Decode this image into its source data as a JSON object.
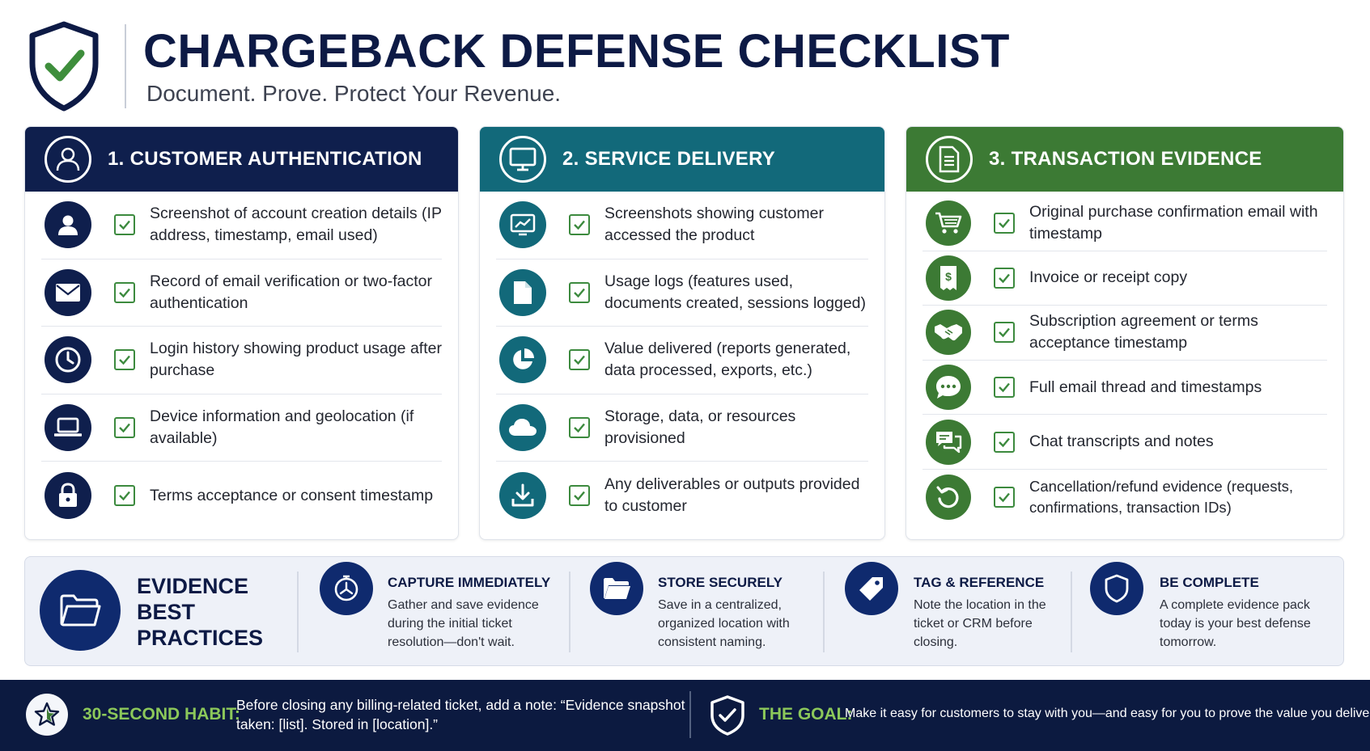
{
  "header": {
    "title": "CHARGEBACK DEFENSE CHECKLIST",
    "subtitle": "Document. Prove. Protect Your Revenue."
  },
  "colors": {
    "navy": "#0f1f4d",
    "teal": "#12697a",
    "green": "#3c7a34",
    "accent_green": "#8cc85a",
    "footer_bg": "#0c1a40"
  },
  "sections": [
    {
      "title": "1. CUSTOMER AUTHENTICATION",
      "icon": "user-icon",
      "items": [
        {
          "icon": "person-icon",
          "text": "Screenshot of account creation details (IP address, timestamp, email used)"
        },
        {
          "icon": "envelope-icon",
          "text": "Record of email verification or two-factor authentication"
        },
        {
          "icon": "clock-icon",
          "text": "Login history showing product usage after purchase"
        },
        {
          "icon": "laptop-icon",
          "text": "Device information and geolocation (if available)"
        },
        {
          "icon": "lock-icon",
          "text": "Terms acceptance or consent timestamp"
        }
      ]
    },
    {
      "title": "2. SERVICE DELIVERY",
      "icon": "monitor-icon",
      "items": [
        {
          "icon": "chart-screen-icon",
          "text": "Screenshots showing customer accessed the product"
        },
        {
          "icon": "document-icon",
          "text": "Usage logs (features used, documents created, sessions logged)"
        },
        {
          "icon": "pie-chart-icon",
          "text": "Value delivered (reports generated, data processed, exports, etc.)"
        },
        {
          "icon": "cloud-icon",
          "text": "Storage, data, or resources provisioned"
        },
        {
          "icon": "download-icon",
          "text": "Any deliverables or outputs provided to customer"
        }
      ]
    },
    {
      "title": "3. TRANSACTION EVIDENCE",
      "icon": "receipt-doc-icon",
      "items": [
        {
          "icon": "cart-icon",
          "text": "Original purchase confirmation email with timestamp"
        },
        {
          "icon": "invoice-icon",
          "text": "Invoice or receipt copy"
        },
        {
          "icon": "handshake-icon",
          "text": "Subscription agreement or terms acceptance timestamp"
        },
        {
          "icon": "chat-bubble-icon",
          "text": "Full email thread and timestamps"
        },
        {
          "icon": "chat-transcript-icon",
          "text": "Chat transcripts and notes"
        },
        {
          "icon": "refund-icon",
          "text": "Cancellation/refund evidence (requests, confirmations, transaction IDs)"
        }
      ]
    }
  ],
  "best_practices": {
    "title": "EVIDENCE BEST PRACTICES",
    "items": [
      {
        "icon": "stopwatch-icon",
        "heading": "CAPTURE IMMEDIATELY",
        "body": "Gather and save evidence during the initial ticket resolution—don't wait."
      },
      {
        "icon": "folder-icon",
        "heading": "STORE SECURELY",
        "body": "Save in a centralized, organized location with consistent naming."
      },
      {
        "icon": "tag-icon",
        "heading": "TAG & REFERENCE",
        "body": "Note the location in the ticket or CRM before closing."
      },
      {
        "icon": "shield-icon",
        "heading": "BE COMPLETE",
        "body": "A complete evidence pack today is your best defense tomorrow."
      }
    ]
  },
  "footer": {
    "habit_label": "30-SECOND HABIT:",
    "habit_text": "Before closing any billing-related ticket, add a note: “Evidence snapshot taken: [list]. Stored in [location].”",
    "goal_label": "THE GOAL:",
    "goal_text": "Make it easy for customers to stay with you—and easy for you to prove the value you delivered."
  }
}
